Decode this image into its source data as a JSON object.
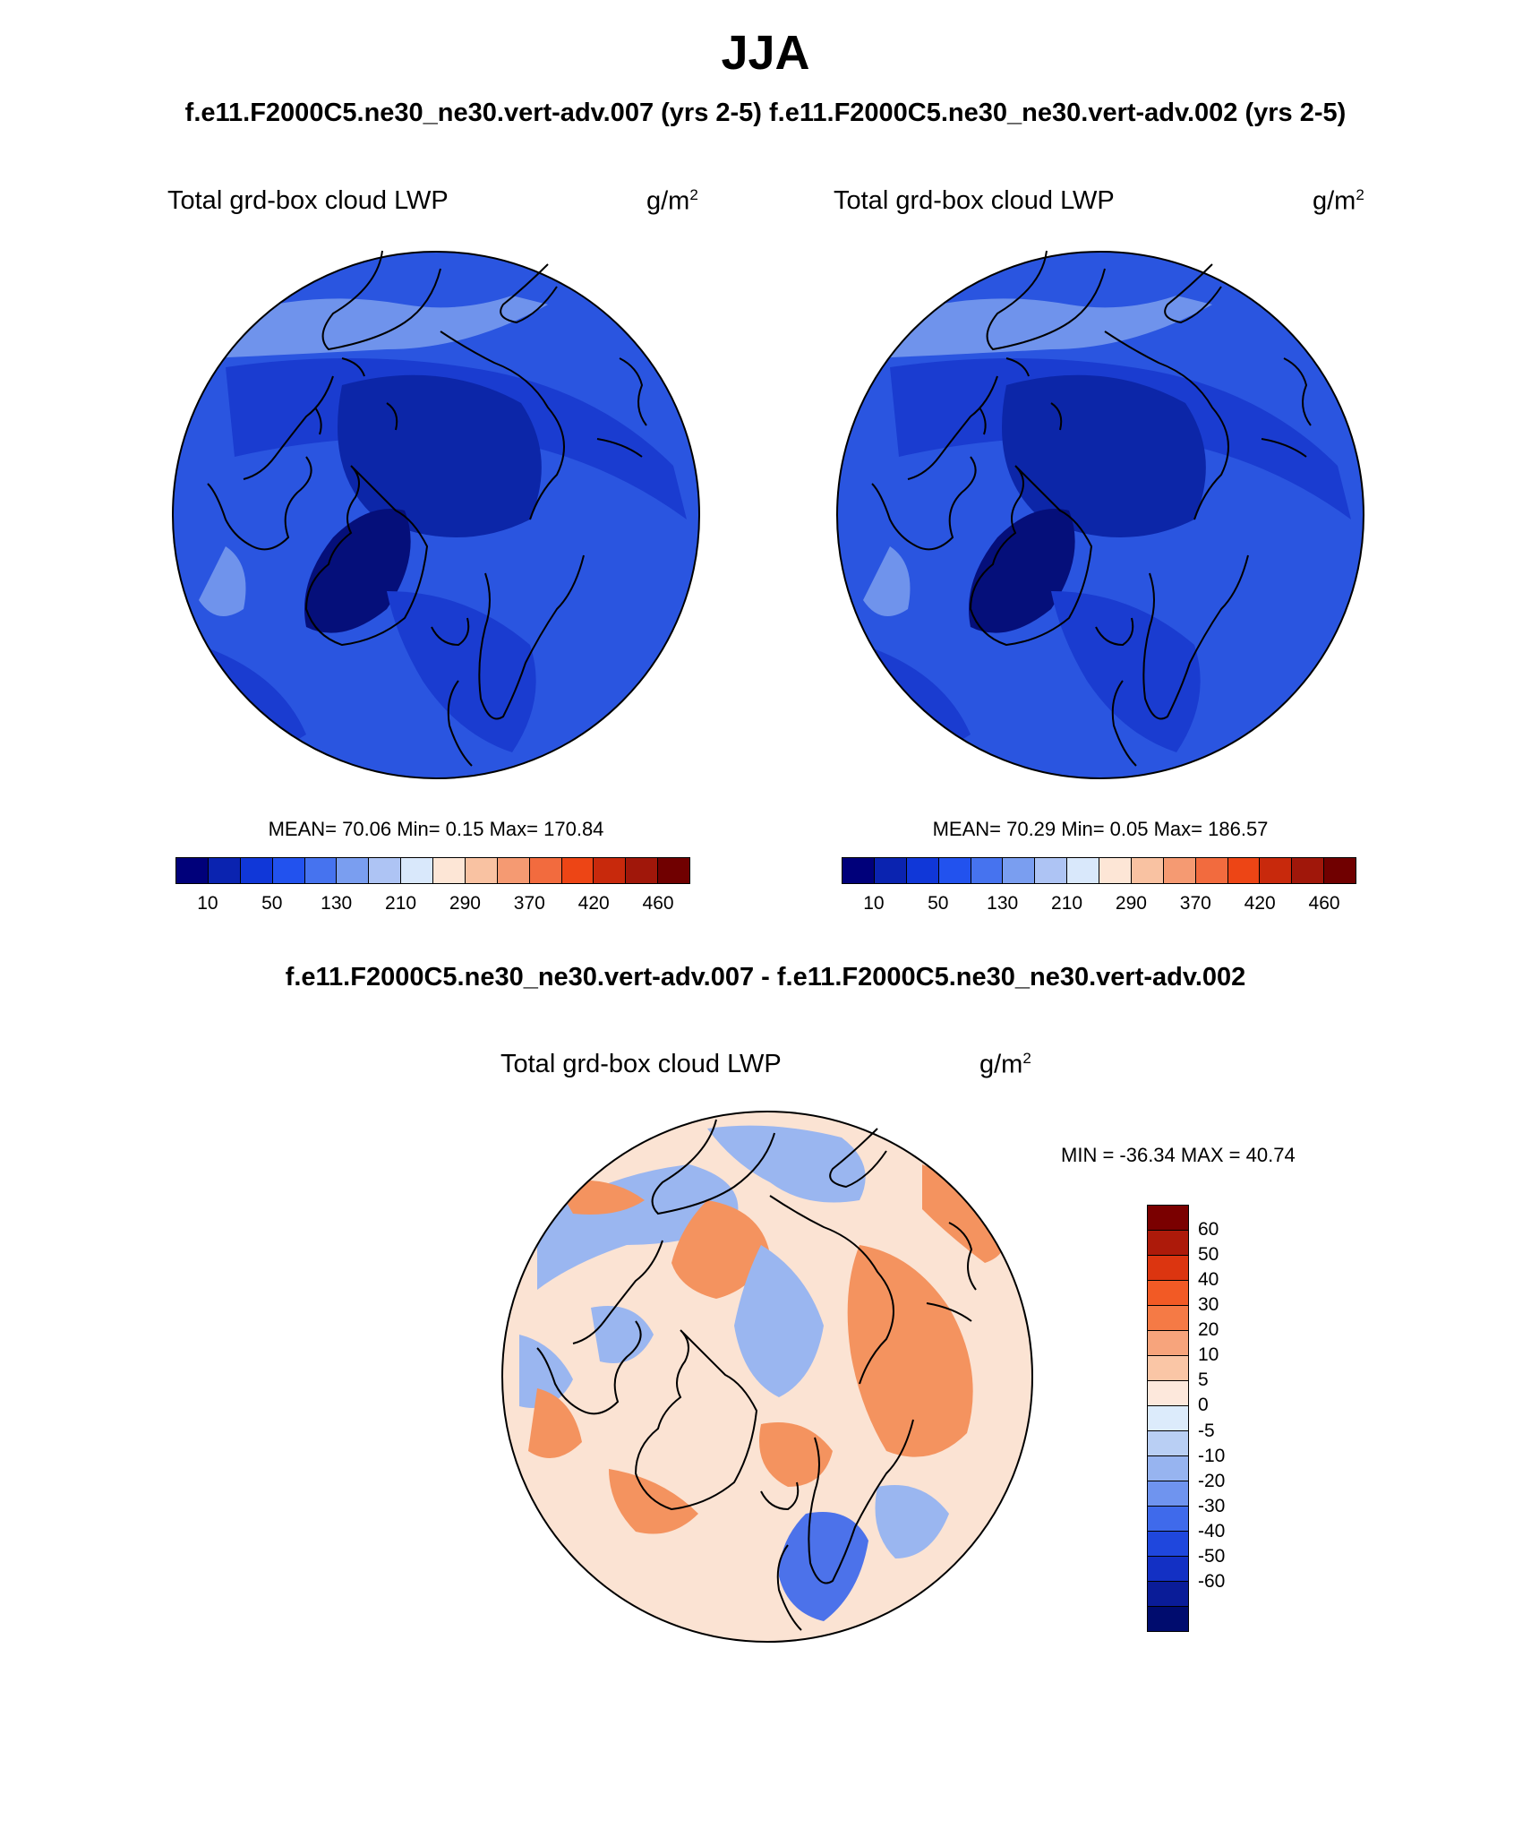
{
  "title": "JJA",
  "top_subtitle": "f.e11.F2000C5.ne30_ne30.vert-adv.007 (yrs 2-5)  f.e11.F2000C5.ne30_ne30.vert-adv.002 (yrs 2-5)",
  "diff_title": "f.e11.F2000C5.ne30_ne30.vert-adv.007 - f.e11.F2000C5.ne30_ne30.vert-adv.002",
  "panels": [
    {
      "variable": "Total grd-box cloud LWP",
      "units_base": "g/m",
      "units_exp": "2",
      "stats": "MEAN=  70.06  Min=   0.15  Max= 170.84"
    },
    {
      "variable": "Total grd-box cloud LWP",
      "units_base": "g/m",
      "units_exp": "2",
      "stats": "MEAN=  70.29  Min=   0.05  Max= 186.57"
    }
  ],
  "diff_panel": {
    "variable": "Total grd-box cloud LWP",
    "units_base": "g/m",
    "units_exp": "2",
    "minmax": "MIN = -36.34 MAX =  40.74"
  },
  "colorbar_main": {
    "colors": [
      "#00007a",
      "#0a23b0",
      "#1037d8",
      "#2252ee",
      "#4673ef",
      "#7a9ef0",
      "#aec4f4",
      "#d9e8fb",
      "#fde6d6",
      "#f9c2a2",
      "#f59a72",
      "#f26b3e",
      "#ed4515",
      "#c8290c",
      "#a0170a",
      "#700000"
    ],
    "tick_labels": [
      "10",
      "50",
      "130",
      "210",
      "290",
      "370",
      "420",
      "460"
    ]
  },
  "colorbar_diff": {
    "colors": [
      "#7a0000",
      "#ad1a0a",
      "#dc3510",
      "#f25a25",
      "#f57a45",
      "#f7a47c",
      "#fac6a6",
      "#fde8dc",
      "#dcebfb",
      "#b9cff4",
      "#97b4f0",
      "#6f94ef",
      "#3f6aeb",
      "#1f47dd",
      "#1330c4",
      "#0a1c98",
      "#000c6e"
    ],
    "tick_labels": [
      "60",
      "50",
      "40",
      "30",
      "20",
      "10",
      "5",
      "0",
      "-5",
      "-10",
      "-20",
      "-30",
      "-40",
      "-50",
      "-60"
    ]
  },
  "map_colors": {
    "base_fill": "#2a55e0",
    "mid_fill": "#1a3cd0",
    "deep_fill": "#0c26a8",
    "darkest_fill": "#050f7a",
    "light_fill": "#6f93ec",
    "diff_base": "#fbe3d3",
    "diff_warm": "#f4935f",
    "diff_cool": "#9ab6f0",
    "diff_strong_cool": "#4c72ea",
    "coastline": "#000000"
  }
}
